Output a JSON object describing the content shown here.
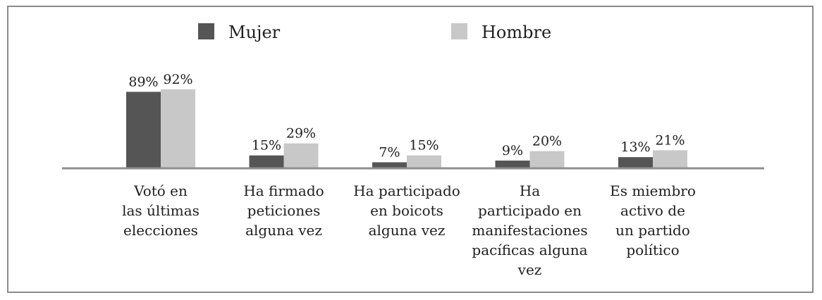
{
  "chart_data": {
    "type": "bar",
    "categories": [
      [
        "Votó en",
        "las últimas",
        "elecciones"
      ],
      [
        "Ha firmado",
        "peticiones",
        "alguna vez"
      ],
      [
        "Ha participado",
        "en boicots",
        "alguna vez"
      ],
      [
        "Ha",
        "participado en",
        "manifestaciones",
        "pacíficas alguna",
        "vez"
      ],
      [
        "Es miembro",
        "activo de",
        "un partido",
        "político"
      ]
    ],
    "series": [
      {
        "name": "Mujer",
        "color": "#555555",
        "values": [
          89,
          15,
          7,
          9,
          13
        ],
        "labels": [
          "89%",
          "15%",
          "7%",
          "9%",
          "13%"
        ]
      },
      {
        "name": "Hombre",
        "color": "#c8c8c8",
        "values": [
          92,
          29,
          15,
          20,
          21
        ],
        "labels": [
          "92%",
          "29%",
          "15%",
          "20%",
          "21%"
        ]
      }
    ],
    "ylim": [
      0,
      100
    ],
    "grid": false,
    "legend": "top-center",
    "title": "",
    "xlabel": "",
    "ylabel": ""
  }
}
